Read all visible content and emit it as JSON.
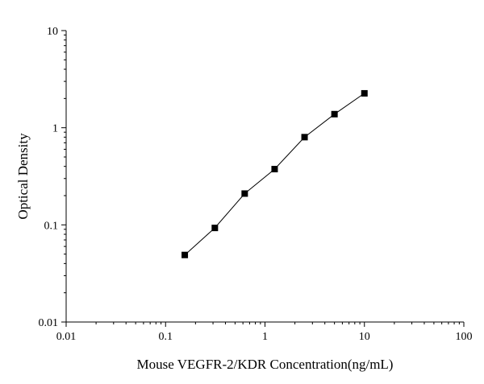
{
  "chart_data": {
    "type": "scatter",
    "title": "",
    "xlabel": "Mouse VEGFR-2/KDR  Concentration(ng/mL)",
    "ylabel": "Optical Density",
    "x_scale": "log",
    "y_scale": "log",
    "xlim": [
      0.01,
      100
    ],
    "ylim": [
      0.01,
      10
    ],
    "x_ticks": [
      "0.01",
      "0.1",
      "1",
      "10",
      "100"
    ],
    "y_ticks": [
      "0.01",
      "0.1",
      "1",
      "10"
    ],
    "grid": false,
    "legend": "none",
    "series": [
      {
        "x": [
          0.156,
          0.313,
          0.625,
          1.25,
          2.5,
          5,
          10
        ],
        "y": [
          0.049,
          0.093,
          0.21,
          0.375,
          0.8,
          1.38,
          2.26
        ],
        "marker": "square",
        "color": "#000000",
        "line": true
      }
    ]
  }
}
